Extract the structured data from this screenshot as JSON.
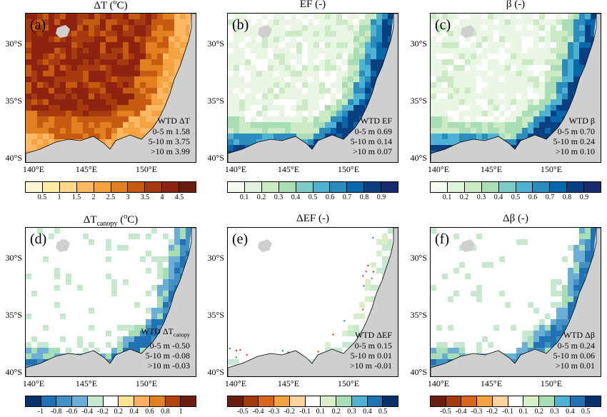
{
  "panels": [
    {
      "title_main": "ΔT (",
      "title_sup": "o",
      "title_end": "C)",
      "tag": "(a)",
      "stats_header": "WTD  ΔT",
      "stats": [
        "0-5 m 1.58",
        "5-10 m 3.75",
        ">10 m 3.99"
      ],
      "palette": "temp"
    },
    {
      "title_main": "EF (-)",
      "tag": "(b)",
      "stats_header": "WTD  EF",
      "stats": [
        "0-5 m 0.69",
        "5-10 m 0.14",
        ">10 m 0.07"
      ],
      "palette": "blue"
    },
    {
      "title_main": "β  (-)",
      "tag": "(c)",
      "stats_header": "WTD   β",
      "stats": [
        "0-5 m 0.70",
        "5-10 m 0.24",
        ">10 m 0.10"
      ],
      "palette": "blue"
    },
    {
      "title_main": "ΔT",
      "title_sub": "canopy",
      "title_end": " (",
      "title_sup": "o",
      "title_end2": "C)",
      "tag": "(d)",
      "stats_header": "WTD ΔT",
      "stats_header_sub": "canopy",
      "stats": [
        "0-5 m -0.50",
        "5-10 m -0.08",
        ">10 m -0.03"
      ],
      "palette": "sparse"
    },
    {
      "title_main": "ΔEF (-)",
      "tag": "(e)",
      "stats_header": "WTD   ΔEF",
      "stats": [
        "0-5 m 0.15",
        "5-10 m 0.01",
        ">10 m -0.01"
      ],
      "palette": "dots"
    },
    {
      "title_main": "Δβ  (-)",
      "tag": "(f)",
      "stats_header": "WTD  Δβ",
      "stats": [
        "0-5 m 0.24",
        "5-10 m 0.06",
        ">10 m 0.01"
      ],
      "palette": "sparse"
    }
  ],
  "axes": {
    "lat_labels": [
      "30°S",
      "35°S",
      "40°S"
    ],
    "lon_labels": [
      "140°E",
      "145°E",
      "150°E"
    ]
  },
  "colorbars": [
    {
      "ticks": [
        "0.5",
        "1",
        "1.5",
        "2",
        "2.5",
        "3",
        "3.5",
        "4",
        "4.5"
      ],
      "colors": [
        "#fff7d4",
        "#feeca0",
        "#fed88a",
        "#fdb863",
        "#f4a340",
        "#e08020",
        "#c55a10",
        "#a63b0f",
        "#8e2410",
        "#6b1c0e"
      ]
    },
    {
      "ticks": [
        "0.1",
        "0.2",
        "0.3",
        "0.4",
        "0.5",
        "0.6",
        "0.7",
        "0.8",
        "0.9"
      ],
      "colors": [
        "#f7fcf0",
        "#e0f3db",
        "#ccebc5",
        "#a8ddb5",
        "#7bccc4",
        "#4eb3d3",
        "#2b8cbe",
        "#0868ac",
        "#084081",
        "#172b6e"
      ]
    },
    {
      "ticks": [
        "0.1",
        "0.2",
        "0.3",
        "0.4",
        "0.5",
        "0.6",
        "0.7",
        "0.8",
        "0.9"
      ],
      "colors": [
        "#f7fcf0",
        "#e0f3db",
        "#ccebc5",
        "#a8ddb5",
        "#7bccc4",
        "#4eb3d3",
        "#2b8cbe",
        "#0868ac",
        "#084081",
        "#172b6e"
      ]
    },
    {
      "ticks": [
        "-1",
        "-0.8",
        "-0.6",
        "-0.4",
        "-0.2",
        "0.2",
        "0.4",
        "0.6",
        "0.8",
        "1"
      ],
      "colors": [
        "#08306b",
        "#2171b5",
        "#4292c6",
        "#6baed6",
        "#c6e8d0",
        "#ffffff",
        "#fee391",
        "#fdae61",
        "#e08020",
        "#b2450e",
        "#6b1c0e"
      ]
    },
    {
      "ticks": [
        "-0.5",
        "-0.4",
        "-0.3",
        "-0.2",
        "-0.1",
        "0.1",
        "0.2",
        "0.3",
        "0.4",
        "0.5"
      ],
      "colors": [
        "#6b1c0e",
        "#a63b0f",
        "#d9661a",
        "#f4a340",
        "#fdd49e",
        "#ffffff",
        "#d6efc7",
        "#a8ddb5",
        "#4eb3d3",
        "#2171b5",
        "#08306b"
      ]
    },
    {
      "ticks": [
        "-0.5",
        "-0.4",
        "-0.3",
        "-0.2",
        "-0.1",
        "0.1",
        "0.2",
        "0.3",
        "0.4",
        "0.5"
      ],
      "colors": [
        "#6b1c0e",
        "#a63b0f",
        "#d9661a",
        "#f4a340",
        "#fdd49e",
        "#ffffff",
        "#d6efc7",
        "#a8ddb5",
        "#4eb3d3",
        "#2171b5",
        "#08306b"
      ]
    }
  ]
}
